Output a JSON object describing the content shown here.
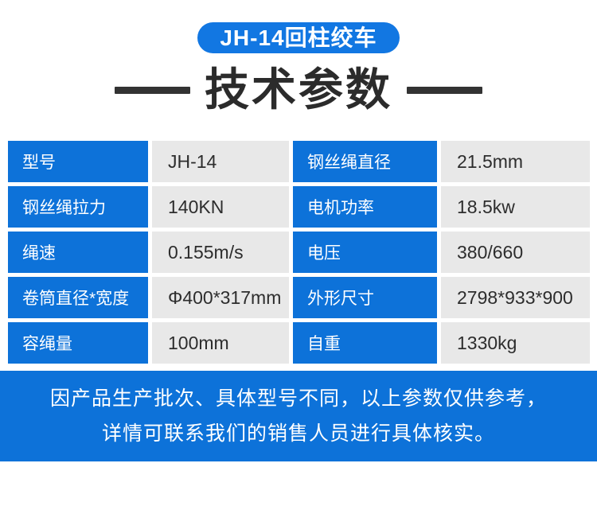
{
  "colors": {
    "brand_blue": "#0d72d9",
    "badge_blue": "#1277e2",
    "cell_gray": "#e8e8e8",
    "title_color": "#2b2b2b",
    "value_color": "#2d2d2d"
  },
  "badge": {
    "label": "JH-14回柱绞车"
  },
  "title": {
    "text": "技术参数"
  },
  "spec_table": {
    "rows": [
      {
        "left_label": "型号",
        "left_value": "JH-14",
        "right_label": "钢丝绳直径",
        "right_value": "21.5mm"
      },
      {
        "left_label": "钢丝绳拉力",
        "left_value": "140KN",
        "right_label": "电机功率",
        "right_value": "18.5kw"
      },
      {
        "left_label": "绳速",
        "left_value": "0.155m/s",
        "right_label": "电压",
        "right_value": "380/660"
      },
      {
        "left_label": "卷筒直径*宽度",
        "left_value": "Φ400*317mm",
        "right_label": "外形尺寸",
        "right_value": "2798*933*900"
      },
      {
        "left_label": "容绳量",
        "left_value": "100mm",
        "right_label": "自重",
        "right_value": "1330kg"
      }
    ]
  },
  "footer": {
    "line1": "因产品生产批次、具体型号不同，以上参数仅供参考，",
    "line2": "详情可联系我们的销售人员进行具体核实。"
  }
}
